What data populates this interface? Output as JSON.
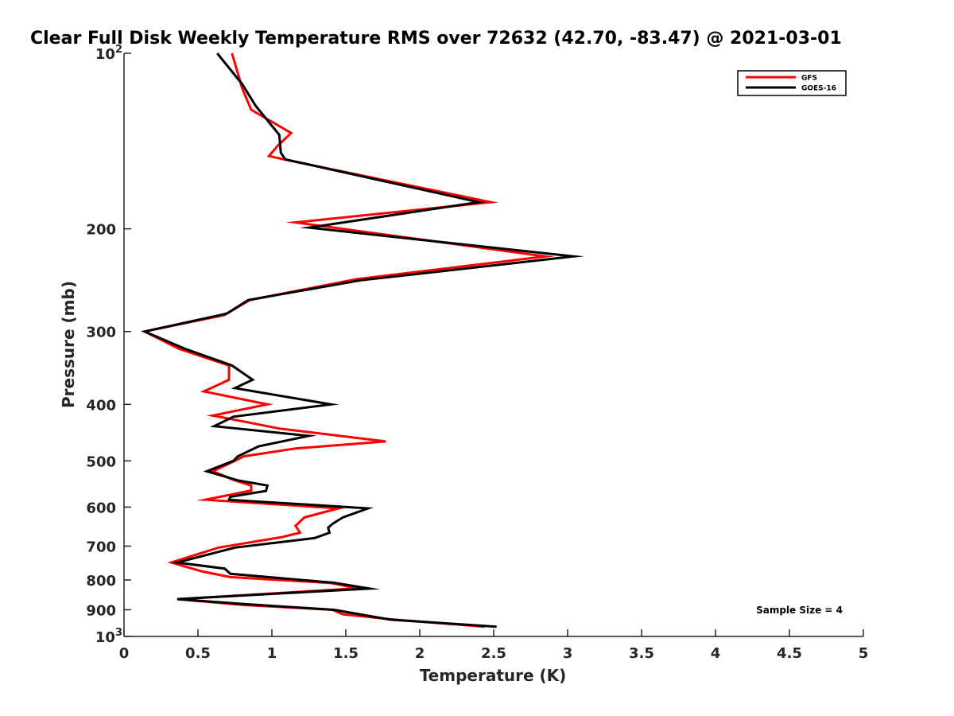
{
  "chart_data": {
    "type": "line",
    "title": "Clear Full Disk Weekly Temperature RMS over 72632 (42.70, -83.47) @ 2021-03-01",
    "xlabel": "Temperature (K)",
    "ylabel": "Pressure (mb)",
    "xlim": [
      0,
      5
    ],
    "ylim": [
      100,
      1000
    ],
    "yscale": "log",
    "yreversed": true,
    "grid": false,
    "legend_position": "top-right",
    "x_ticks": [
      "0",
      "0.5",
      "1",
      "1.5",
      "2",
      "2.5",
      "3",
      "3.5",
      "4",
      "4.5",
      "5"
    ],
    "y_ticks": [
      {
        "value": 100,
        "label": "10",
        "sup": "2"
      },
      {
        "value": 200,
        "label": "200",
        "sup": ""
      },
      {
        "value": 300,
        "label": "300",
        "sup": ""
      },
      {
        "value": 400,
        "label": "400",
        "sup": ""
      },
      {
        "value": 500,
        "label": "500",
        "sup": ""
      },
      {
        "value": 600,
        "label": "600",
        "sup": ""
      },
      {
        "value": 700,
        "label": "700",
        "sup": ""
      },
      {
        "value": 800,
        "label": "800",
        "sup": ""
      },
      {
        "value": 900,
        "label": "900",
        "sup": ""
      },
      {
        "value": 1000,
        "label": "10",
        "sup": "3"
      }
    ],
    "annotation": "Sample Size = 4",
    "series": [
      {
        "name": "GFS",
        "color": "#ff0000",
        "points": [
          [
            0.73,
            100
          ],
          [
            0.8,
            115
          ],
          [
            0.86,
            125
          ],
          [
            1.13,
            137
          ],
          [
            1.04,
            144
          ],
          [
            0.98,
            150
          ],
          [
            1.08,
            152
          ],
          [
            2.48,
            180
          ],
          [
            1.16,
            195
          ],
          [
            2.85,
            223
          ],
          [
            1.57,
            244
          ],
          [
            0.85,
            265
          ],
          [
            0.7,
            279
          ],
          [
            0.68,
            281
          ],
          [
            0.14,
            300
          ],
          [
            0.37,
            321
          ],
          [
            0.71,
            343
          ],
          [
            0.71,
            363
          ],
          [
            0.54,
            380
          ],
          [
            0.97,
            400
          ],
          [
            0.6,
            418
          ],
          [
            0.85,
            430
          ],
          [
            1.05,
            440
          ],
          [
            1.77,
            463
          ],
          [
            1.16,
            476
          ],
          [
            0.81,
            491
          ],
          [
            0.75,
            500
          ],
          [
            0.6,
            521
          ],
          [
            0.75,
            540
          ],
          [
            0.86,
            551
          ],
          [
            0.86,
            562
          ],
          [
            0.55,
            583
          ],
          [
            1.45,
            603
          ],
          [
            1.22,
            625
          ],
          [
            1.16,
            646
          ],
          [
            1.19,
            664
          ],
          [
            1.06,
            676
          ],
          [
            0.64,
            704
          ],
          [
            0.32,
            747
          ],
          [
            0.53,
            774
          ],
          [
            0.72,
            791
          ],
          [
            1.4,
            810
          ],
          [
            1.58,
            827
          ],
          [
            0.36,
            863
          ],
          [
            0.8,
            883
          ],
          [
            1.41,
            900
          ],
          [
            1.48,
            916
          ],
          [
            1.83,
            936
          ],
          [
            2.44,
            962
          ]
        ]
      },
      {
        "name": "GOES-16",
        "color": "#000000",
        "points": [
          [
            0.63,
            100
          ],
          [
            0.8,
            113
          ],
          [
            0.89,
            123
          ],
          [
            1.05,
            138
          ],
          [
            1.06,
            148
          ],
          [
            1.09,
            152
          ],
          [
            2.4,
            180
          ],
          [
            1.25,
            199
          ],
          [
            3.04,
            223
          ],
          [
            1.6,
            245
          ],
          [
            0.84,
            265
          ],
          [
            0.7,
            279
          ],
          [
            0.68,
            280
          ],
          [
            0.14,
            300
          ],
          [
            0.41,
            321
          ],
          [
            0.73,
            343
          ],
          [
            0.87,
            363
          ],
          [
            0.75,
            375
          ],
          [
            1.4,
            400
          ],
          [
            0.74,
            420
          ],
          [
            0.61,
            436
          ],
          [
            1.25,
            453
          ],
          [
            0.91,
            472
          ],
          [
            0.77,
            491
          ],
          [
            0.74,
            500
          ],
          [
            0.56,
            521
          ],
          [
            0.77,
            540
          ],
          [
            0.97,
            551
          ],
          [
            0.96,
            563
          ],
          [
            0.72,
            576
          ],
          [
            0.71,
            583
          ],
          [
            1.65,
            603
          ],
          [
            1.48,
            625
          ],
          [
            1.41,
            641
          ],
          [
            1.38,
            651
          ],
          [
            1.39,
            664
          ],
          [
            1.29,
            678
          ],
          [
            0.75,
            704
          ],
          [
            0.36,
            747
          ],
          [
            0.68,
            765
          ],
          [
            0.72,
            781
          ],
          [
            1.42,
            809
          ],
          [
            1.66,
            828
          ],
          [
            1.05,
            844
          ],
          [
            0.36,
            863
          ],
          [
            0.81,
            880
          ],
          [
            1.42,
            900
          ],
          [
            1.8,
            936
          ],
          [
            2.52,
            962
          ]
        ]
      }
    ]
  }
}
